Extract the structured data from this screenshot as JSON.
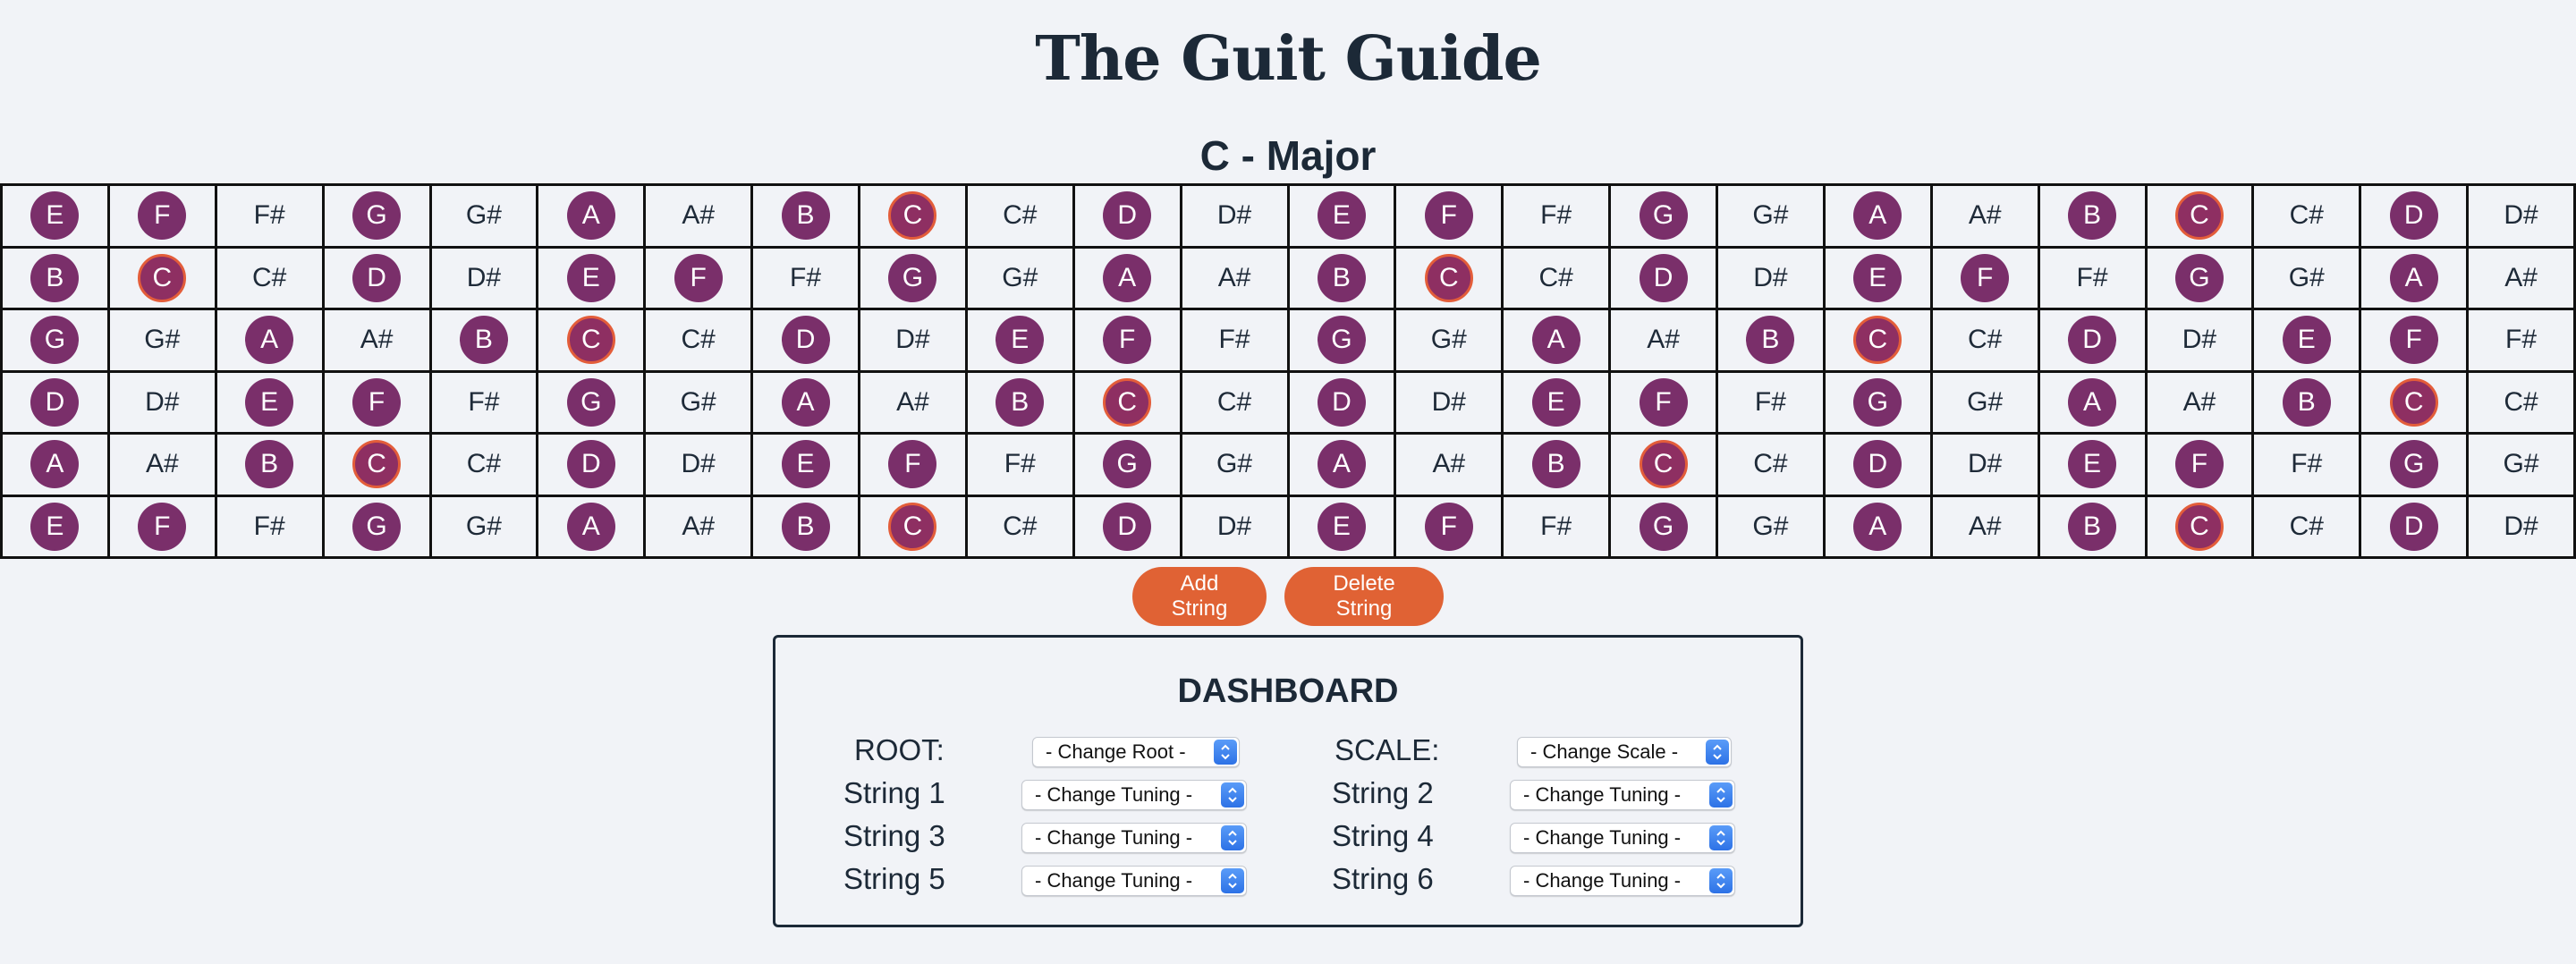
{
  "app": {
    "title": "The Guit Guide",
    "scale_title": "C - Major"
  },
  "colors": {
    "background": "#f1f3f7",
    "scale_note": "#7a2f6a",
    "root_note": "#8e2f62",
    "root_ring": "#e35d3a",
    "button": "#e06234",
    "text": "#1c2937",
    "select_arrow": "#2d72e6"
  },
  "fretboard": {
    "strings": [
      [
        "E",
        "F",
        "F#",
        "G",
        "G#",
        "A",
        "A#",
        "B",
        "C",
        "C#",
        "D",
        "D#",
        "E",
        "F",
        "F#",
        "G",
        "G#",
        "A",
        "A#",
        "B",
        "C",
        "C#",
        "D",
        "D#"
      ],
      [
        "B",
        "C",
        "C#",
        "D",
        "D#",
        "E",
        "F",
        "F#",
        "G",
        "G#",
        "A",
        "A#",
        "B",
        "C",
        "C#",
        "D",
        "D#",
        "E",
        "F",
        "F#",
        "G",
        "G#",
        "A",
        "A#"
      ],
      [
        "G",
        "G#",
        "A",
        "A#",
        "B",
        "C",
        "C#",
        "D",
        "D#",
        "E",
        "F",
        "F#",
        "G",
        "G#",
        "A",
        "A#",
        "B",
        "C",
        "C#",
        "D",
        "D#",
        "E",
        "F",
        "F#"
      ],
      [
        "D",
        "D#",
        "E",
        "F",
        "F#",
        "G",
        "G#",
        "A",
        "A#",
        "B",
        "C",
        "C#",
        "D",
        "D#",
        "E",
        "F",
        "F#",
        "G",
        "G#",
        "A",
        "A#",
        "B",
        "C",
        "C#"
      ],
      [
        "A",
        "A#",
        "B",
        "C",
        "C#",
        "D",
        "D#",
        "E",
        "F",
        "F#",
        "G",
        "G#",
        "A",
        "A#",
        "B",
        "C",
        "C#",
        "D",
        "D#",
        "E",
        "F",
        "F#",
        "G",
        "G#"
      ],
      [
        "E",
        "F",
        "F#",
        "G",
        "G#",
        "A",
        "A#",
        "B",
        "C",
        "C#",
        "D",
        "D#",
        "E",
        "F",
        "F#",
        "G",
        "G#",
        "A",
        "A#",
        "B",
        "C",
        "C#",
        "D",
        "D#"
      ]
    ],
    "scale_notes": [
      "C",
      "D",
      "E",
      "F",
      "G",
      "A",
      "B"
    ],
    "root": "C"
  },
  "buttons": {
    "add_string": "Add String",
    "delete_string": "Delete String"
  },
  "dashboard": {
    "title": "DASHBOARD",
    "root_label": "ROOT:",
    "root_select": "- Change Root -",
    "scale_label": "SCALE:",
    "scale_select": "- Change Scale -",
    "string1_label": "String 1",
    "string2_label": "String 2",
    "string3_label": "String 3",
    "string4_label": "String 4",
    "string5_label": "String 5",
    "string6_label": "String 6",
    "tuning_select": "- Change Tuning -"
  }
}
